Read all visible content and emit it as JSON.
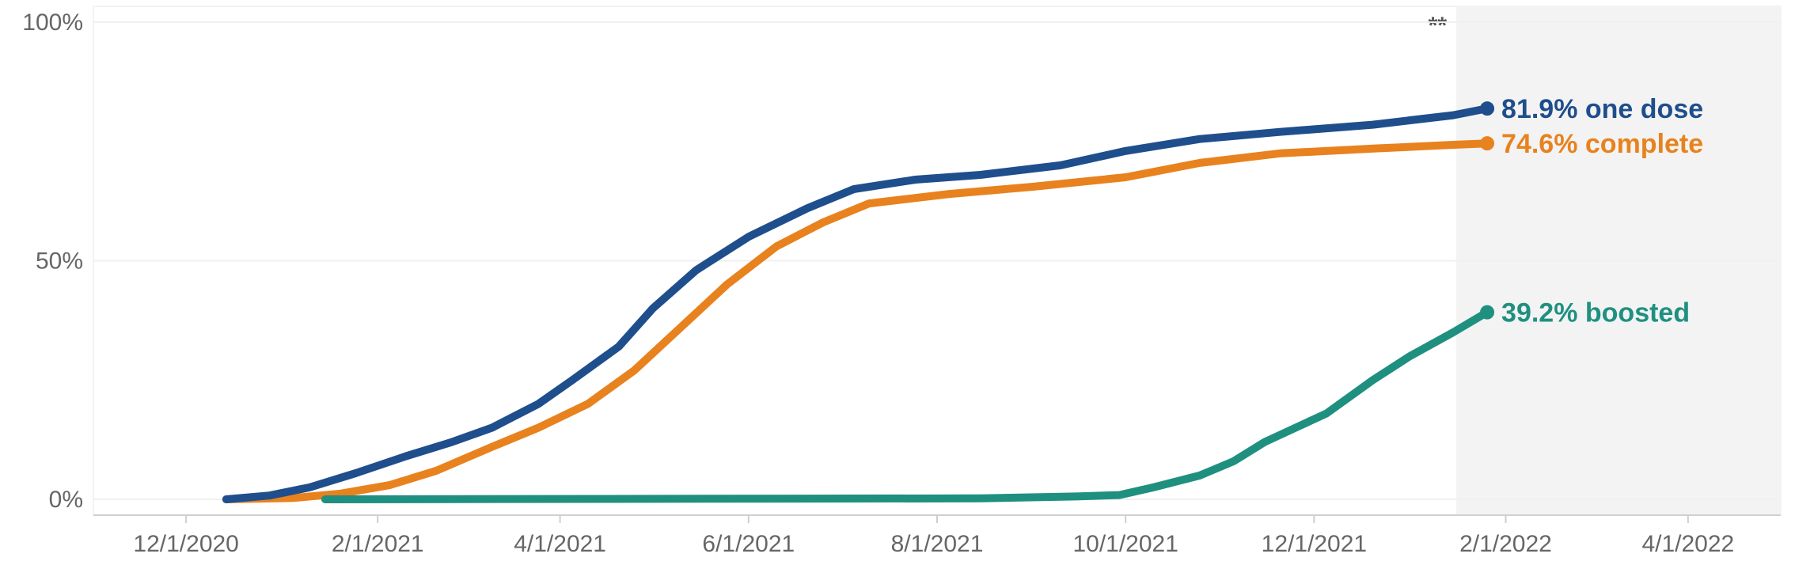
{
  "chart_data": {
    "type": "line",
    "title": "",
    "xlabel": "",
    "ylabel": "",
    "x_ticks": [
      "12/1/2020",
      "2/1/2021",
      "4/1/2021",
      "6/1/2021",
      "8/1/2021",
      "10/1/2021",
      "12/1/2021",
      "2/1/2022",
      "4/1/2022"
    ],
    "y_ticks": [
      "0%",
      "50%",
      "100%"
    ],
    "ylim": [
      0,
      100
    ],
    "xlim": [
      "2020-11-01",
      "2022-05-01"
    ],
    "grid": "horizontal",
    "shaded_region": {
      "start": "2022-01-16",
      "end": "2022-05-01",
      "label": "**"
    },
    "series": [
      {
        "name": "one dose",
        "end_label": "81.9% one dose",
        "color": "#1f4e8c",
        "points": [
          [
            "2020-12-14",
            0
          ],
          [
            "2020-12-28",
            0.8
          ],
          [
            "2021-01-10",
            2.5
          ],
          [
            "2021-01-25",
            5.5
          ],
          [
            "2021-02-10",
            9
          ],
          [
            "2021-02-25",
            12
          ],
          [
            "2021-03-10",
            15
          ],
          [
            "2021-03-25",
            20
          ],
          [
            "2021-04-05",
            25
          ],
          [
            "2021-04-20",
            32
          ],
          [
            "2021-05-01",
            40
          ],
          [
            "2021-05-15",
            48
          ],
          [
            "2021-06-01",
            55
          ],
          [
            "2021-06-20",
            61
          ],
          [
            "2021-07-05",
            65
          ],
          [
            "2021-07-25",
            67
          ],
          [
            "2021-08-15",
            68
          ],
          [
            "2021-09-10",
            70
          ],
          [
            "2021-10-01",
            73
          ],
          [
            "2021-10-25",
            75.5
          ],
          [
            "2021-11-20",
            77
          ],
          [
            "2021-12-20",
            78.5
          ],
          [
            "2022-01-15",
            80.5
          ],
          [
            "2022-01-26",
            81.9
          ]
        ]
      },
      {
        "name": "complete",
        "end_label": "74.6% complete",
        "color": "#e8821e",
        "points": [
          [
            "2020-12-14",
            0
          ],
          [
            "2021-01-05",
            0.3
          ],
          [
            "2021-01-20",
            1.2
          ],
          [
            "2021-02-05",
            3
          ],
          [
            "2021-02-20",
            6
          ],
          [
            "2021-03-10",
            11
          ],
          [
            "2021-03-25",
            15
          ],
          [
            "2021-04-10",
            20
          ],
          [
            "2021-04-25",
            27
          ],
          [
            "2021-05-10",
            36
          ],
          [
            "2021-05-25",
            45
          ],
          [
            "2021-06-10",
            53
          ],
          [
            "2021-06-25",
            58
          ],
          [
            "2021-07-10",
            62
          ],
          [
            "2021-08-05",
            64
          ],
          [
            "2021-09-01",
            65.5
          ],
          [
            "2021-10-01",
            67.5
          ],
          [
            "2021-10-25",
            70.5
          ],
          [
            "2021-11-20",
            72.5
          ],
          [
            "2021-12-20",
            73.5
          ],
          [
            "2022-01-15",
            74.3
          ],
          [
            "2022-01-26",
            74.6
          ]
        ]
      },
      {
        "name": "boosted",
        "end_label": "39.2% boosted",
        "color": "#1f9080",
        "points": [
          [
            "2021-01-15",
            0
          ],
          [
            "2021-08-15",
            0.2
          ],
          [
            "2021-09-15",
            0.6
          ],
          [
            "2021-09-29",
            0.9
          ],
          [
            "2021-10-10",
            2.5
          ],
          [
            "2021-10-25",
            5
          ],
          [
            "2021-11-05",
            8
          ],
          [
            "2021-11-15",
            12
          ],
          [
            "2021-11-25",
            15
          ],
          [
            "2021-12-05",
            18
          ],
          [
            "2021-12-20",
            25
          ],
          [
            "2022-01-01",
            30
          ],
          [
            "2022-01-15",
            35
          ],
          [
            "2022-01-26",
            39.2
          ]
        ]
      }
    ]
  }
}
